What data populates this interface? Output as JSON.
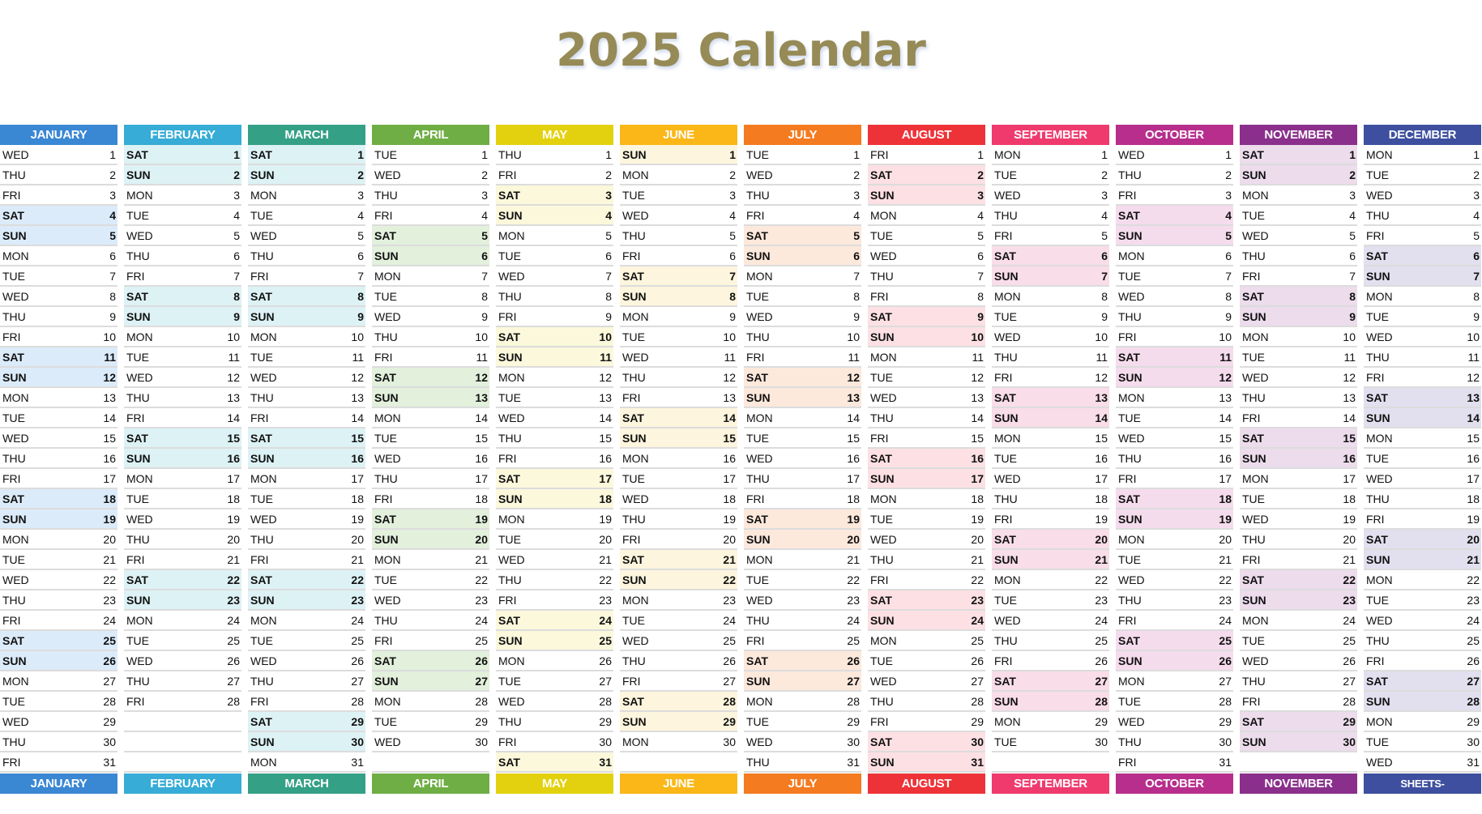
{
  "title": "2025 Calendar",
  "weekday_labels": [
    "MON",
    "TUE",
    "WED",
    "THU",
    "FRI",
    "SAT",
    "SUN"
  ],
  "footer_brand": "SHEETS-PRATIQUE.COM",
  "months": [
    {
      "name": "JANUARY",
      "color": "#3a87d4",
      "weekend_bg": "#dcebfa",
      "first_weekday": 2,
      "days": 31
    },
    {
      "name": "FEBRUARY",
      "color": "#36acd6",
      "weekend_bg": "#ddf2f5",
      "first_weekday": 5,
      "days": 28
    },
    {
      "name": "MARCH",
      "color": "#34a086",
      "weekend_bg": "#ddf2f5",
      "first_weekday": 5,
      "days": 31
    },
    {
      "name": "APRIL",
      "color": "#6fae45",
      "weekend_bg": "#e2f0dc",
      "first_weekday": 1,
      "days": 30
    },
    {
      "name": "MAY",
      "color": "#e3d10f",
      "weekend_bg": "#fbf8dc",
      "first_weekday": 3,
      "days": 31
    },
    {
      "name": "JUNE",
      "color": "#fbb718",
      "weekend_bg": "#fdf5dd",
      "first_weekday": 6,
      "days": 30
    },
    {
      "name": "JULY",
      "color": "#f47b20",
      "weekend_bg": "#fde8dc",
      "first_weekday": 1,
      "days": 31
    },
    {
      "name": "AUGUST",
      "color": "#ee3338",
      "weekend_bg": "#fde0e4",
      "first_weekday": 4,
      "days": 31
    },
    {
      "name": "SEPTEMBER",
      "color": "#ef3a6e",
      "weekend_bg": "#f9dde9",
      "first_weekday": 0,
      "days": 30
    },
    {
      "name": "OCTOBER",
      "color": "#b72e8c",
      "weekend_bg": "#f5dced",
      "first_weekday": 2,
      "days": 31
    },
    {
      "name": "NOVEMBER",
      "color": "#8a2f8c",
      "weekend_bg": "#ecdcec",
      "first_weekday": 5,
      "days": 30
    },
    {
      "name": "DECEMBER",
      "color": "#3d4f9e",
      "weekend_bg": "#e2e0ef",
      "first_weekday": 0,
      "days": 31
    }
  ]
}
